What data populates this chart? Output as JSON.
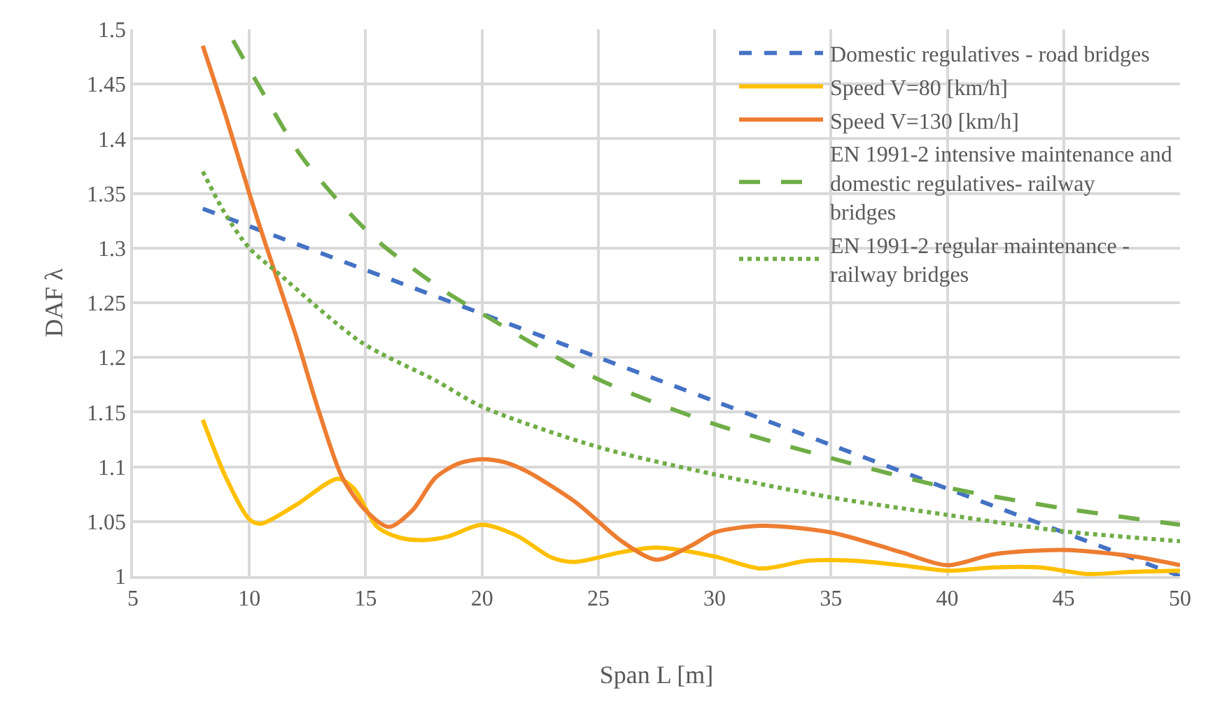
{
  "chart_data": {
    "type": "line",
    "xlabel": "Span L [m]",
    "ylabel": "DAF λ",
    "xlim": [
      5,
      50
    ],
    "ylim": [
      1,
      1.5
    ],
    "xticks": [
      5,
      10,
      15,
      20,
      25,
      30,
      35,
      40,
      45,
      50
    ],
    "yticks": [
      1,
      {
        "value": 1.05,
        "label": "1.05"
      },
      {
        "value": 1.1,
        "label": "1.1"
      },
      {
        "value": 1.15,
        "label": "1.15"
      },
      {
        "value": 1.2,
        "label": "1.2"
      },
      {
        "value": 1.25,
        "label": "1.25"
      },
      {
        "value": 1.3,
        "label": "1.3"
      },
      {
        "value": 1.35,
        "label": "1.35"
      },
      {
        "value": 1.4,
        "label": "1.4"
      },
      {
        "value": 1.45,
        "label": "1.45"
      },
      {
        "value": 1.5,
        "label": "1.5"
      }
    ],
    "grid": true,
    "legend": "top right",
    "marker": "none",
    "series": [
      {
        "name": "Domestic regulatives - road bridges",
        "color": "#4472c4",
        "line_style": "dashed",
        "x": [
          8,
          10,
          15,
          20,
          25,
          30,
          35,
          40,
          45,
          50
        ],
        "values": [
          1.336,
          1.32,
          1.28,
          1.24,
          1.2,
          1.16,
          1.12,
          1.08,
          1.04,
          1.0
        ]
      },
      {
        "name": "Speed V=80 [km/h]",
        "color": "#ffc000",
        "line_style": "solid",
        "x": [
          8,
          9,
          10,
          10.5,
          12,
          13.8,
          14.5,
          15.5,
          16.5,
          17.5,
          18.5,
          20,
          21.5,
          23,
          24,
          26,
          27.5,
          30,
          32,
          34,
          36,
          38,
          40,
          42,
          44,
          46,
          48,
          50
        ],
        "values": [
          1.143,
          1.09,
          1.052,
          1.048,
          1.065,
          1.089,
          1.08,
          1.045,
          1.035,
          1.033,
          1.036,
          1.047,
          1.037,
          1.017,
          1.013,
          1.022,
          1.026,
          1.018,
          1.007,
          1.014,
          1.014,
          1.01,
          1.005,
          1.008,
          1.008,
          1.002,
          1.004,
          1.005
        ]
      },
      {
        "name": "Speed V=130 [km/h]",
        "color": "#ed7d31",
        "line_style": "solid",
        "x": [
          8,
          9,
          10,
          10.6,
          12,
          13,
          14,
          15,
          16,
          17,
          18,
          19,
          20,
          21,
          22,
          24,
          25,
          26,
          27.5,
          29,
          30,
          32,
          35,
          38,
          40,
          42,
          45,
          48,
          50
        ],
        "values": [
          1.485,
          1.42,
          1.35,
          1.31,
          1.22,
          1.15,
          1.09,
          1.06,
          1.045,
          1.06,
          1.09,
          1.103,
          1.107,
          1.104,
          1.095,
          1.068,
          1.05,
          1.032,
          1.015,
          1.028,
          1.04,
          1.046,
          1.04,
          1.022,
          1.01,
          1.02,
          1.024,
          1.018,
          1.01
        ]
      },
      {
        "name": "EN 1991-2 intensive maintenance and domestic regulatives- railway bridges",
        "color": "#70ad47",
        "line_style": "longdash",
        "x": [
          9.3,
          10.5,
          12.2,
          14,
          15.6,
          18.3,
          20,
          25,
          30,
          35,
          40,
          45,
          50
        ],
        "values": [
          1.49,
          1.445,
          1.385,
          1.339,
          1.305,
          1.262,
          1.24,
          1.18,
          1.139,
          1.108,
          1.081,
          1.062,
          1.047
        ]
      },
      {
        "name": "EN 1991-2 regular maintenance - railway bridges",
        "color": "#70ad47",
        "line_style": "dotted",
        "x": [
          8,
          9,
          10,
          11.3,
          14.8,
          18,
          20,
          25,
          30,
          35,
          40,
          45,
          50
        ],
        "values": [
          1.37,
          1.33,
          1.3,
          1.276,
          1.214,
          1.179,
          1.155,
          1.118,
          1.093,
          1.072,
          1.056,
          1.041,
          1.032
        ]
      }
    ]
  }
}
